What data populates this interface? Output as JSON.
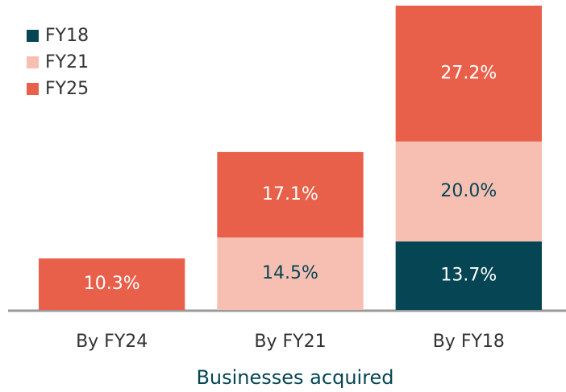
{
  "chart_data": {
    "type": "stacked_bar",
    "x_label": "Businesses acquired",
    "categories": [
      "By FY24",
      "By FY21",
      "By FY18"
    ],
    "series": [
      {
        "name": "FY18",
        "color": "#064554",
        "values": [
          null,
          null,
          13.7
        ],
        "value_labels": [
          null,
          null,
          "13.7%"
        ]
      },
      {
        "name": "FY21",
        "color": "#f6bfb2",
        "values": [
          null,
          14.5,
          20.0
        ],
        "value_labels": [
          null,
          "14.5%",
          "20.0%"
        ]
      },
      {
        "name": "FY25",
        "color": "#e8604a",
        "values": [
          10.3,
          17.1,
          27.2
        ],
        "value_labels": [
          "10.3%",
          "17.1%",
          "27.2%"
        ]
      }
    ],
    "legend": "top-left"
  }
}
